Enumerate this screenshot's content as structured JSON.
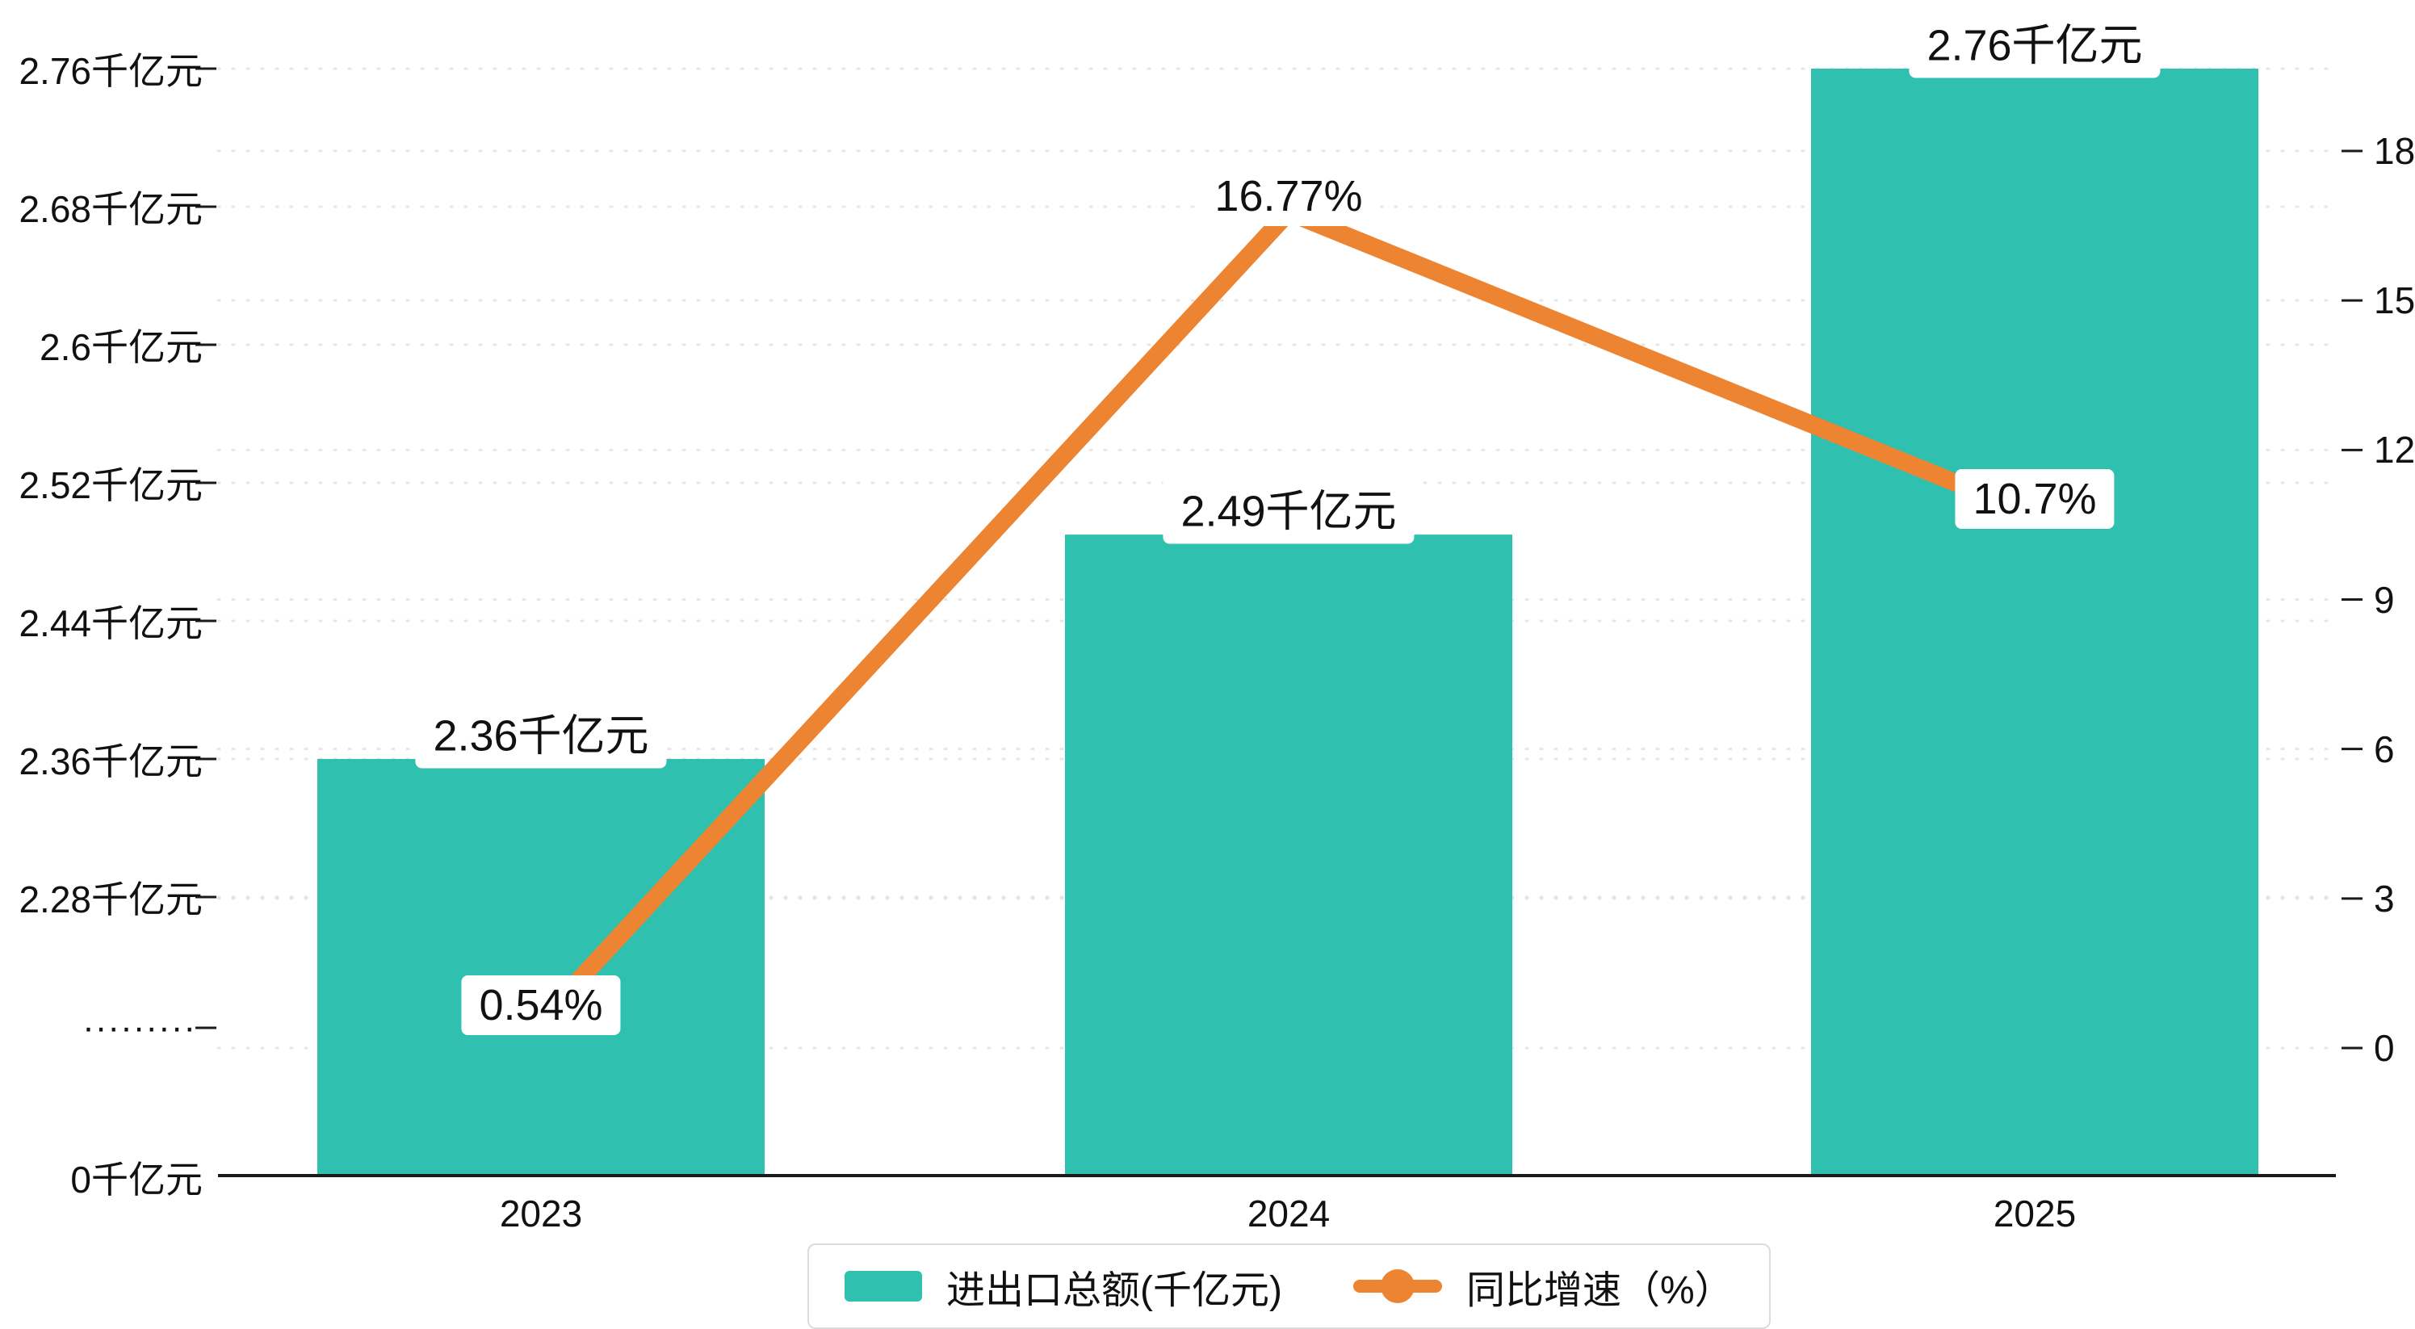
{
  "colors": {
    "background": "#ffffff",
    "bar": "#2fc0b0",
    "line": "#ed8432",
    "grid": "#dedede",
    "axis": "#1a1a1a",
    "text": "#111111"
  },
  "chart_data": {
    "type": "bar",
    "subtype": "bar+line combo, dual y-axis, broken left axis",
    "title": "",
    "categories": [
      "2023",
      "2024",
      "2025"
    ],
    "series": [
      {
        "name": "进出口总额(千亿元)",
        "type": "bar",
        "axis": "left",
        "values": [
          2.36,
          2.49,
          2.76
        ],
        "labels": [
          "2.36千亿元",
          "2.49千亿元",
          "2.76千亿元"
        ],
        "color": "#2fc0b0"
      },
      {
        "name": "同比增速（%）",
        "type": "line",
        "axis": "right",
        "values": [
          0.54,
          16.77,
          10.7
        ],
        "labels": [
          "0.54%",
          "16.77%",
          "10.7%"
        ],
        "color": "#ed8432"
      }
    ],
    "left_axis": {
      "unit": "千亿元",
      "ticks": [
        {
          "label": "2.76千亿元",
          "value": 2.76
        },
        {
          "label": "2.68千亿元",
          "value": 2.68
        },
        {
          "label": "2.6千亿元",
          "value": 2.6
        },
        {
          "label": "2.52千亿元",
          "value": 2.52
        },
        {
          "label": "2.44千亿元",
          "value": 2.44
        },
        {
          "label": "2.36千亿元",
          "value": 2.36
        },
        {
          "label": "2.28千亿元",
          "value": 2.28
        }
      ],
      "break_label": "·········",
      "zero_label": "0千亿元",
      "visible_range": [
        2.28,
        2.76
      ]
    },
    "right_axis": {
      "unit": "%",
      "ticks": [
        {
          "label": "18",
          "value": 18
        },
        {
          "label": "15",
          "value": 15
        },
        {
          "label": "12",
          "value": 12
        },
        {
          "label": "9",
          "value": 9
        },
        {
          "label": "6",
          "value": 6
        },
        {
          "label": "3",
          "value": 3
        },
        {
          "label": "0",
          "value": 0
        }
      ],
      "range": [
        0,
        18
      ]
    },
    "legend": [
      {
        "label": "进出口总额(千亿元)",
        "marker": "bar",
        "color": "#2fc0b0"
      },
      {
        "label": "同比增速（%）",
        "marker": "line",
        "color": "#ed8432"
      }
    ],
    "grid": true,
    "legend_position": "bottom"
  }
}
